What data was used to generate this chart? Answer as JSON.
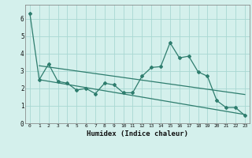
{
  "curve_x": [
    0,
    1,
    2,
    3,
    4,
    5,
    6,
    7,
    8,
    9,
    10,
    11,
    12,
    13,
    14,
    15,
    16,
    17,
    18,
    19,
    20,
    21,
    22,
    23
  ],
  "curve_y": [
    6.3,
    2.5,
    3.4,
    2.4,
    2.3,
    1.9,
    2.0,
    1.7,
    2.3,
    2.2,
    1.75,
    1.75,
    2.7,
    3.2,
    3.25,
    4.62,
    3.75,
    3.85,
    2.95,
    2.7,
    1.3,
    0.9,
    0.9,
    0.45
  ],
  "trend1_x": [
    1,
    23
  ],
  "trend1_y": [
    3.3,
    1.65
  ],
  "trend2_x": [
    1,
    23
  ],
  "trend2_y": [
    2.5,
    0.5
  ],
  "color": "#2e7d6e",
  "bg_color": "#d4f0ec",
  "grid_color": "#a8d8d2",
  "xlabel": "Humidex (Indice chaleur)",
  "ylim": [
    0,
    6.8
  ],
  "xlim": [
    -0.5,
    23.5
  ],
  "yticks": [
    0,
    1,
    2,
    3,
    4,
    5,
    6
  ],
  "xticks": [
    0,
    1,
    2,
    3,
    4,
    5,
    6,
    7,
    8,
    9,
    10,
    11,
    12,
    13,
    14,
    15,
    16,
    17,
    18,
    19,
    20,
    21,
    22,
    23
  ]
}
